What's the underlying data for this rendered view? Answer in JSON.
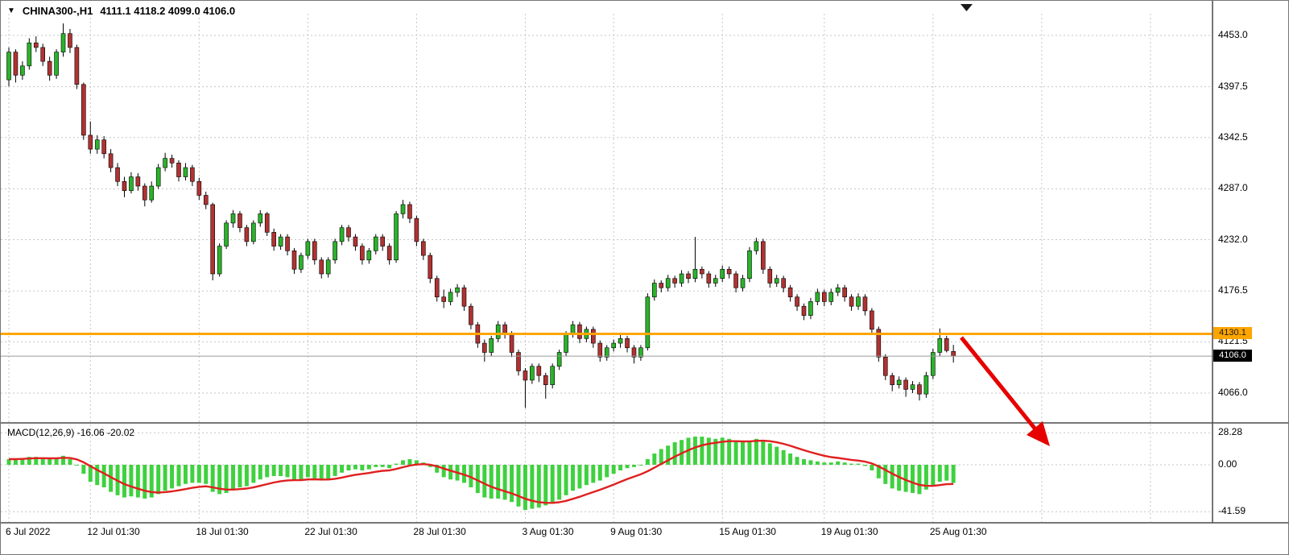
{
  "window": {
    "title_symbol": "CHINA300-,H1",
    "title_ohlc": "4111.1 4118.2 4099.0 4106.0"
  },
  "chart_data": {
    "type": "candlestick",
    "symbol": "CHINA300-",
    "timeframe": "H1",
    "ohlc_display": {
      "open": "4111.1",
      "high": "4118.2",
      "low": "4099.0",
      "close": "4106.0"
    },
    "y_axis": {
      "ticks": [
        4453.0,
        4397.5,
        4342.5,
        4287.0,
        4232.0,
        4176.5,
        4121.5,
        4066.0
      ],
      "labels": [
        "4453.0",
        "4397.5",
        "4342.5",
        "4287.0",
        "4232.0",
        "4176.5",
        "4121.5",
        "4066.0"
      ]
    },
    "x_axis": {
      "ticks": [
        {
          "label": "6 Jul 2022",
          "i": 0
        },
        {
          "label": "12 Jul 01:30",
          "i": 12
        },
        {
          "label": "18 Jul 01:30",
          "i": 28
        },
        {
          "label": "22 Jul 01:30",
          "i": 44
        },
        {
          "label": "28 Jul 01:30",
          "i": 60
        },
        {
          "label": "3 Aug 01:30",
          "i": 76
        },
        {
          "label": "9 Aug 01:30",
          "i": 89
        },
        {
          "label": "15 Aug 01:30",
          "i": 105
        },
        {
          "label": "19 Aug 01:30",
          "i": 120
        },
        {
          "label": "25 Aug 01:30",
          "i": 136
        },
        {
          "label": null,
          "i": 152
        },
        {
          "label": null,
          "i": 168
        }
      ]
    },
    "horizontal_line": {
      "price": 4130.1,
      "label": "4130.1",
      "color": "#ffa500"
    },
    "current_price": {
      "value": 4106.0,
      "label": "4106.0"
    },
    "candles": [
      [
        4405,
        4440,
        4398,
        4435
      ],
      [
        4435,
        4438,
        4402,
        4410
      ],
      [
        4410,
        4425,
        4405,
        4420
      ],
      [
        4420,
        4450,
        4416,
        4445
      ],
      [
        4445,
        4452,
        4435,
        4440
      ],
      [
        4440,
        4444,
        4420,
        4425
      ],
      [
        4425,
        4430,
        4404,
        4410
      ],
      [
        4410,
        4438,
        4406,
        4435
      ],
      [
        4435,
        4466,
        4430,
        4455
      ],
      [
        4455,
        4460,
        4434,
        4440
      ],
      [
        4440,
        4443,
        4395,
        4400
      ],
      [
        4400,
        4402,
        4340,
        4345
      ],
      [
        4345,
        4360,
        4325,
        4330
      ],
      [
        4330,
        4345,
        4325,
        4340
      ],
      [
        4340,
        4344,
        4320,
        4325
      ],
      [
        4325,
        4330,
        4305,
        4310
      ],
      [
        4310,
        4315,
        4290,
        4295
      ],
      [
        4295,
        4300,
        4278,
        4285
      ],
      [
        4285,
        4305,
        4282,
        4300
      ],
      [
        4300,
        4304,
        4285,
        4290
      ],
      [
        4290,
        4293,
        4268,
        4275
      ],
      [
        4275,
        4295,
        4272,
        4290
      ],
      [
        4290,
        4314,
        4287,
        4310
      ],
      [
        4310,
        4326,
        4306,
        4320
      ],
      [
        4320,
        4324,
        4310,
        4315
      ],
      [
        4315,
        4318,
        4295,
        4300
      ],
      [
        4300,
        4315,
        4296,
        4310
      ],
      [
        4310,
        4313,
        4290,
        4295
      ],
      [
        4295,
        4299,
        4275,
        4280
      ],
      [
        4280,
        4284,
        4265,
        4270
      ],
      [
        4270,
        4272,
        4188,
        4195
      ],
      [
        4195,
        4228,
        4192,
        4225
      ],
      [
        4225,
        4253,
        4222,
        4250
      ],
      [
        4250,
        4264,
        4245,
        4260
      ],
      [
        4260,
        4263,
        4240,
        4245
      ],
      [
        4245,
        4248,
        4225,
        4230
      ],
      [
        4230,
        4253,
        4227,
        4250
      ],
      [
        4250,
        4264,
        4246,
        4260
      ],
      [
        4260,
        4262,
        4236,
        4240
      ],
      [
        4240,
        4244,
        4220,
        4225
      ],
      [
        4225,
        4238,
        4221,
        4235
      ],
      [
        4235,
        4238,
        4215,
        4220
      ],
      [
        4220,
        4223,
        4195,
        4200
      ],
      [
        4200,
        4218,
        4196,
        4215
      ],
      [
        4215,
        4233,
        4211,
        4230
      ],
      [
        4230,
        4233,
        4205,
        4210
      ],
      [
        4210,
        4213,
        4190,
        4195
      ],
      [
        4195,
        4213,
        4191,
        4210
      ],
      [
        4210,
        4233,
        4206,
        4230
      ],
      [
        4230,
        4248,
        4226,
        4245
      ],
      [
        4245,
        4248,
        4230,
        4235
      ],
      [
        4235,
        4238,
        4220,
        4225
      ],
      [
        4225,
        4228,
        4205,
        4210
      ],
      [
        4210,
        4223,
        4206,
        4220
      ],
      [
        4220,
        4238,
        4216,
        4235
      ],
      [
        4235,
        4238,
        4220,
        4225
      ],
      [
        4225,
        4228,
        4205,
        4210
      ],
      [
        4210,
        4263,
        4207,
        4260
      ],
      [
        4260,
        4275,
        4255,
        4270
      ],
      [
        4270,
        4273,
        4250,
        4255
      ],
      [
        4255,
        4258,
        4225,
        4230
      ],
      [
        4230,
        4233,
        4210,
        4215
      ],
      [
        4215,
        4218,
        4185,
        4190
      ],
      [
        4190,
        4193,
        4165,
        4170
      ],
      [
        4170,
        4178,
        4158,
        4165
      ],
      [
        4165,
        4179,
        4161,
        4175
      ],
      [
        4175,
        4184,
        4170,
        4180
      ],
      [
        4180,
        4183,
        4155,
        4160
      ],
      [
        4160,
        4163,
        4135,
        4140
      ],
      [
        4140,
        4143,
        4115,
        4120
      ],
      [
        4120,
        4124,
        4100,
        4110
      ],
      [
        4110,
        4128,
        4106,
        4125
      ],
      [
        4125,
        4144,
        4121,
        4140
      ],
      [
        4140,
        4143,
        4125,
        4130
      ],
      [
        4130,
        4133,
        4105,
        4110
      ],
      [
        4110,
        4113,
        4085,
        4090
      ],
      [
        4090,
        4093,
        4050,
        4080
      ],
      [
        4080,
        4098,
        4076,
        4095
      ],
      [
        4095,
        4098,
        4078,
        4085
      ],
      [
        4085,
        4088,
        4060,
        4075
      ],
      [
        4075,
        4098,
        4071,
        4095
      ],
      [
        4095,
        4113,
        4091,
        4110
      ],
      [
        4110,
        4133,
        4106,
        4130
      ],
      [
        4130,
        4144,
        4126,
        4140
      ],
      [
        4140,
        4143,
        4120,
        4125
      ],
      [
        4125,
        4138,
        4121,
        4135
      ],
      [
        4135,
        4138,
        4115,
        4120
      ],
      [
        4120,
        4123,
        4100,
        4105
      ],
      [
        4105,
        4118,
        4101,
        4115
      ],
      [
        4115,
        4124,
        4111,
        4120
      ],
      [
        4120,
        4129,
        4115,
        4125
      ],
      [
        4125,
        4128,
        4110,
        4115
      ],
      [
        4115,
        4118,
        4098,
        4105
      ],
      [
        4105,
        4118,
        4101,
        4115
      ],
      [
        4115,
        4174,
        4112,
        4170
      ],
      [
        4170,
        4189,
        4166,
        4185
      ],
      [
        4185,
        4188,
        4175,
        4180
      ],
      [
        4180,
        4194,
        4176,
        4190
      ],
      [
        4190,
        4193,
        4180,
        4185
      ],
      [
        4185,
        4199,
        4181,
        4195
      ],
      [
        4195,
        4198,
        4185,
        4190
      ],
      [
        4190,
        4235,
        4186,
        4200
      ],
      [
        4200,
        4203,
        4190,
        4195
      ],
      [
        4195,
        4198,
        4180,
        4185
      ],
      [
        4185,
        4194,
        4181,
        4190
      ],
      [
        4190,
        4204,
        4186,
        4200
      ],
      [
        4200,
        4203,
        4190,
        4195
      ],
      [
        4195,
        4198,
        4175,
        4180
      ],
      [
        4180,
        4194,
        4176,
        4190
      ],
      [
        4190,
        4224,
        4186,
        4220
      ],
      [
        4220,
        4234,
        4216,
        4230
      ],
      [
        4230,
        4233,
        4195,
        4200
      ],
      [
        4200,
        4203,
        4180,
        4185
      ],
      [
        4185,
        4194,
        4181,
        4190
      ],
      [
        4190,
        4193,
        4175,
        4180
      ],
      [
        4180,
        4183,
        4165,
        4170
      ],
      [
        4170,
        4173,
        4155,
        4160
      ],
      [
        4160,
        4163,
        4145,
        4150
      ],
      [
        4150,
        4169,
        4146,
        4165
      ],
      [
        4165,
        4179,
        4161,
        4175
      ],
      [
        4175,
        4178,
        4160,
        4165
      ],
      [
        4165,
        4179,
        4161,
        4175
      ],
      [
        4175,
        4184,
        4171,
        4180
      ],
      [
        4180,
        4183,
        4165,
        4170
      ],
      [
        4170,
        4173,
        4155,
        4160
      ],
      [
        4160,
        4174,
        4156,
        4170
      ],
      [
        4170,
        4173,
        4150,
        4155
      ],
      [
        4155,
        4158,
        4130,
        4135
      ],
      [
        4135,
        4138,
        4100,
        4105
      ],
      [
        4105,
        4108,
        4080,
        4085
      ],
      [
        4085,
        4088,
        4068,
        4075
      ],
      [
        4075,
        4084,
        4071,
        4080
      ],
      [
        4080,
        4083,
        4062,
        4070
      ],
      [
        4070,
        4079,
        4066,
        4075
      ],
      [
        4075,
        4078,
        4058,
        4065
      ],
      [
        4065,
        4089,
        4061,
        4085
      ],
      [
        4085,
        4114,
        4081,
        4110
      ],
      [
        4110,
        4136,
        4106,
        4125
      ],
      [
        4125,
        4128,
        4110,
        4112
      ],
      [
        4111.1,
        4118.2,
        4099.0,
        4106.0
      ]
    ],
    "macd": {
      "label": "MACD(12,26,9) -16.06 -20.02",
      "params": "12,26,9",
      "value": -16.06,
      "signal_value": -20.02,
      "ticks": [
        28.28,
        0.0,
        -41.59
      ],
      "tick_labels": [
        "28.28",
        "0.00",
        "-41.59"
      ],
      "histogram": [
        5,
        5,
        6,
        7,
        7,
        6,
        5,
        6,
        8,
        5,
        0,
        -8,
        -15,
        -18,
        -20,
        -24,
        -27,
        -29,
        -28,
        -29,
        -30,
        -29,
        -26,
        -23,
        -21,
        -19,
        -17,
        -16,
        -16,
        -17,
        -24,
        -26,
        -25,
        -22,
        -20,
        -19,
        -16,
        -13,
        -11,
        -10,
        -10,
        -11,
        -13,
        -13,
        -11,
        -12,
        -14,
        -13,
        -10,
        -7,
        -5,
        -4,
        -5,
        -4,
        -2,
        -2,
        -3,
        1,
        4,
        5,
        4,
        2,
        -2,
        -7,
        -11,
        -13,
        -14,
        -16,
        -20,
        -25,
        -29,
        -30,
        -30,
        -31,
        -33,
        -37,
        -40,
        -39,
        -38,
        -36,
        -34,
        -31,
        -27,
        -23,
        -21,
        -18,
        -16,
        -14,
        -11,
        -8,
        -5,
        -3,
        -2,
        0,
        5,
        10,
        14,
        17,
        20,
        22,
        24,
        25,
        25,
        24,
        23,
        24,
        23,
        21,
        20,
        21,
        23,
        22,
        19,
        16,
        13,
        10,
        7,
        5,
        4,
        3,
        2,
        2,
        3,
        2,
        1,
        1,
        -1,
        -5,
        -12,
        -17,
        -21,
        -23,
        -24,
        -25,
        -26,
        -22,
        -19,
        -15,
        -14,
        -16.06
      ]
    },
    "colors": {
      "up": "#2ab32a",
      "down": "#b03232",
      "wick": "#000000",
      "grid": "#c6c6c6",
      "current_price_line": "#9a9a9a",
      "macd_histogram": "#3fd13f",
      "macd_signal": "#e02020",
      "arrow": "#e60000"
    }
  }
}
